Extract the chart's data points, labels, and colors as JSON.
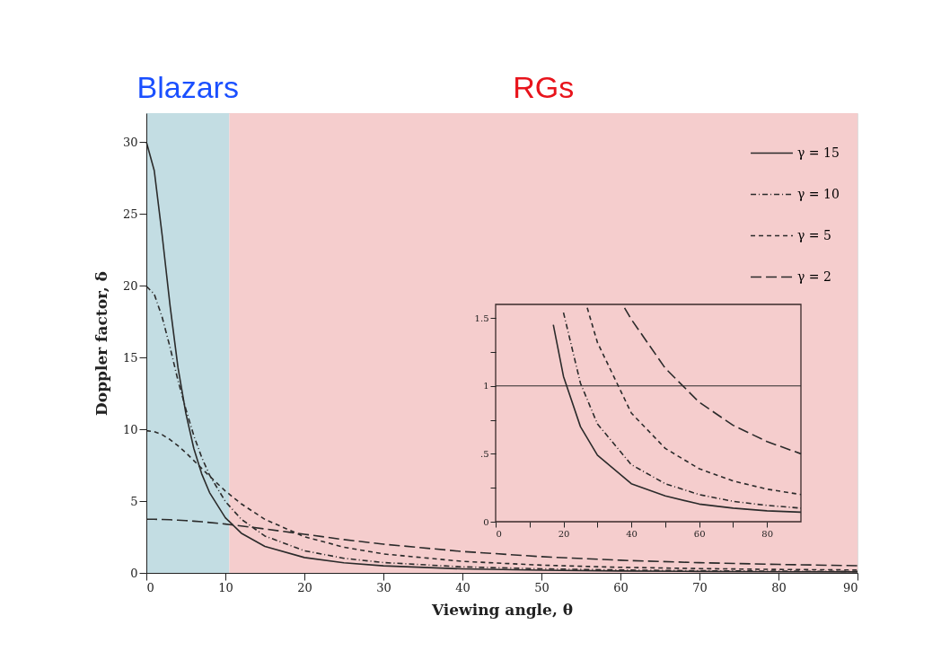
{
  "chart_data": [
    {
      "type": "line",
      "xlabel": "Viewing angle, θ",
      "ylabel": "Doppler factor, δ",
      "x": [
        0,
        1,
        2,
        3,
        4,
        5,
        6,
        7,
        8,
        10,
        12,
        15,
        20,
        25,
        30,
        40,
        50,
        60,
        70,
        80,
        90
      ],
      "series": [
        {
          "name": "γ = 15",
          "color": "#2b2b2b",
          "line_style": "solid",
          "values": [
            30.0,
            28.0,
            23.5,
            18.6,
            14.3,
            11.1,
            8.67,
            6.9,
            5.59,
            3.84,
            2.77,
            1.84,
            1.07,
            0.7,
            0.49,
            0.28,
            0.19,
            0.13,
            0.1,
            0.08,
            0.07
          ]
        },
        {
          "name": "γ = 10",
          "color": "#2b2b2b",
          "line_style": "dotted",
          "values": [
            19.95,
            19.4,
            17.8,
            15.7,
            13.4,
            11.4,
            9.56,
            8.05,
            6.8,
            4.97,
            3.74,
            2.57,
            1.54,
            1.02,
            0.72,
            0.42,
            0.28,
            0.2,
            0.15,
            0.12,
            0.1
          ]
        },
        {
          "name": "γ = 5",
          "color": "#2b2b2b",
          "line_style": "dashed",
          "values": [
            9.9,
            9.83,
            9.62,
            9.28,
            8.85,
            8.36,
            7.82,
            7.27,
            6.73,
            5.7,
            4.81,
            3.73,
            2.52,
            1.79,
            1.32,
            0.8,
            0.54,
            0.39,
            0.3,
            0.24,
            0.2
          ]
        },
        {
          "name": "γ = 2",
          "color": "#2b2b2b",
          "line_style": "dashed",
          "values": [
            3.73,
            3.73,
            3.72,
            3.7,
            3.67,
            3.64,
            3.6,
            3.56,
            3.51,
            3.4,
            3.27,
            3.06,
            2.69,
            2.32,
            2.0,
            1.49,
            1.13,
            0.88,
            0.71,
            0.59,
            0.5
          ]
        }
      ],
      "xlim": [
        0,
        90
      ],
      "xticks": [
        0,
        10,
        20,
        30,
        40,
        50,
        60,
        70,
        80,
        90
      ],
      "ylim": [
        0,
        32
      ],
      "yticks": [
        0,
        5,
        10,
        15,
        20,
        25,
        30
      ],
      "bands": [
        {
          "axis": "x",
          "from": 0,
          "to": 10.5,
          "label": "Blazars",
          "color": "#c3dde3"
        },
        {
          "axis": "x",
          "from": 10.5,
          "to": 90,
          "label": "RGs",
          "color": "#f5cdcd"
        }
      ],
      "legend": "top right",
      "grid": false
    },
    {
      "type": "line",
      "series": [
        {
          "color": "#2b2b2b",
          "line_style": "solid",
          "x": [
            17,
            20,
            25,
            30,
            40,
            50,
            60,
            70,
            80,
            90
          ],
          "values": [
            1.45,
            1.07,
            0.7,
            0.49,
            0.28,
            0.19,
            0.13,
            0.1,
            0.08,
            0.07
          ]
        },
        {
          "color": "#2b2b2b",
          "line_style": "dotted",
          "x": [
            20,
            25,
            30,
            40,
            50,
            60,
            70,
            80,
            90
          ],
          "values": [
            1.54,
            1.02,
            0.72,
            0.42,
            0.28,
            0.2,
            0.15,
            0.12,
            0.1
          ]
        },
        {
          "color": "#2b2b2b",
          "line_style": "dashed",
          "x": [
            27,
            30,
            40,
            50,
            60,
            70,
            80,
            90
          ],
          "values": [
            1.575,
            1.32,
            0.8,
            0.54,
            0.39,
            0.3,
            0.24,
            0.2
          ]
        },
        {
          "color": "#2b2b2b",
          "line_style": "dashed",
          "x": [
            38,
            40,
            50,
            60,
            70,
            80,
            90
          ],
          "values": [
            1.575,
            1.49,
            1.13,
            0.88,
            0.71,
            0.59,
            0.5
          ]
        }
      ],
      "xlim": [
        0,
        90
      ],
      "xticks": [
        0,
        {
          "value": 10,
          "label": null
        },
        20,
        {
          "value": 30,
          "label": null
        },
        40,
        {
          "value": 50,
          "label": null
        },
        60,
        {
          "value": 70,
          "label": null
        },
        80
      ],
      "ylim": [
        0,
        1.6
      ],
      "yticks": [
        0,
        {
          "value": 0.25,
          "label": null
        },
        {
          "value": 0.5,
          "label": ".5"
        },
        {
          "value": 0.75,
          "label": null
        },
        1,
        {
          "value": 1.25,
          "label": null
        },
        1.5
      ],
      "ref_lines": [
        {
          "axis": "y",
          "value": 1,
          "color": "#2b2b2b"
        }
      ],
      "grid": false
    }
  ]
}
